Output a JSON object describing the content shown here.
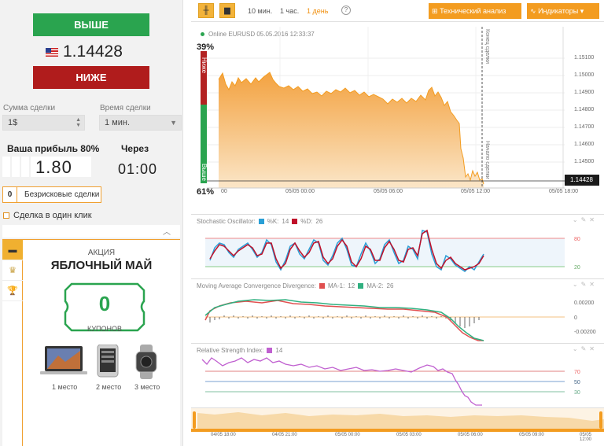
{
  "trade": {
    "up_label": "ВЫШЕ",
    "down_label": "НИЖЕ",
    "price": "1.14428",
    "amount_label": "Сумма сделки",
    "amount_value": "1$",
    "time_label": "Время сделки",
    "time_value": "1 мин.",
    "profit_label": "Ваша прибыль 80%",
    "profit_value": "1.80",
    "through_label": "Через",
    "through_value": "01:00",
    "riskfree_count": "0",
    "riskfree_label": "Безрисковые сделки",
    "oneclick_label": "Сделка в один клик"
  },
  "promo": {
    "subtitle": "АКЦИЯ",
    "title": "ЯБЛОЧНЫЙ МАЙ",
    "coupons_value": "0",
    "coupons_label": "КУПОНОВ",
    "prizes": [
      "1 место",
      "2 место",
      "3 место"
    ]
  },
  "toolbar": {
    "timeframes": [
      "10 мин.",
      "1 час.",
      "1 день"
    ],
    "active_timeframe": "1 день",
    "tech_analysis_label": "Технический анализ",
    "indicators_label": "Индикаторы"
  },
  "main_chart": {
    "status": "Online EURUSD 05.05.2016 12:33:37",
    "pct_up": "39%",
    "pct_down": "61%",
    "bar_up_label": "Ниже",
    "bar_down_label": "Выше",
    "current_price_tag": "1.14428",
    "y_ticks": [
      "1.15100",
      "1.15000",
      "1.14900",
      "1.14800",
      "1.14700",
      "1.14600",
      "1.14500"
    ],
    "x_ticks": [
      "00",
      "05/05 00:00",
      "05/05 06:00",
      "05/05 12:00",
      "05/05 18:00"
    ],
    "end_label": "Конец сделки",
    "start_label": "Начало сделки"
  },
  "stochastic": {
    "title": "Stochastic Oscillator:",
    "k_label": "%K:",
    "k_value": "14",
    "d_label": "%D:",
    "d_value": "26",
    "levels": [
      "80",
      "20"
    ]
  },
  "macd": {
    "title": "Moving Average Convergence Divergence:",
    "ma1_label": "MA-1:",
    "ma1_value": "12",
    "ma2_label": "MA-2:",
    "ma2_value": "26",
    "levels": [
      "0.00200",
      "0",
      "-0.00200"
    ]
  },
  "rsi": {
    "title": "Relative Strength Index:",
    "value": "14",
    "levels": [
      "70",
      "50",
      "30"
    ]
  },
  "timeline": {
    "ticks": [
      "04/05 18:00",
      "04/05 21:00",
      "05/05 00:00",
      "05/05 03:00",
      "05/05 06:00",
      "05/05 09:00",
      "05/05 12:00"
    ]
  },
  "colors": {
    "up": "#2aa44f",
    "down": "#b01c1c",
    "accent": "#f39c20",
    "price_area": "#f5b25a"
  }
}
